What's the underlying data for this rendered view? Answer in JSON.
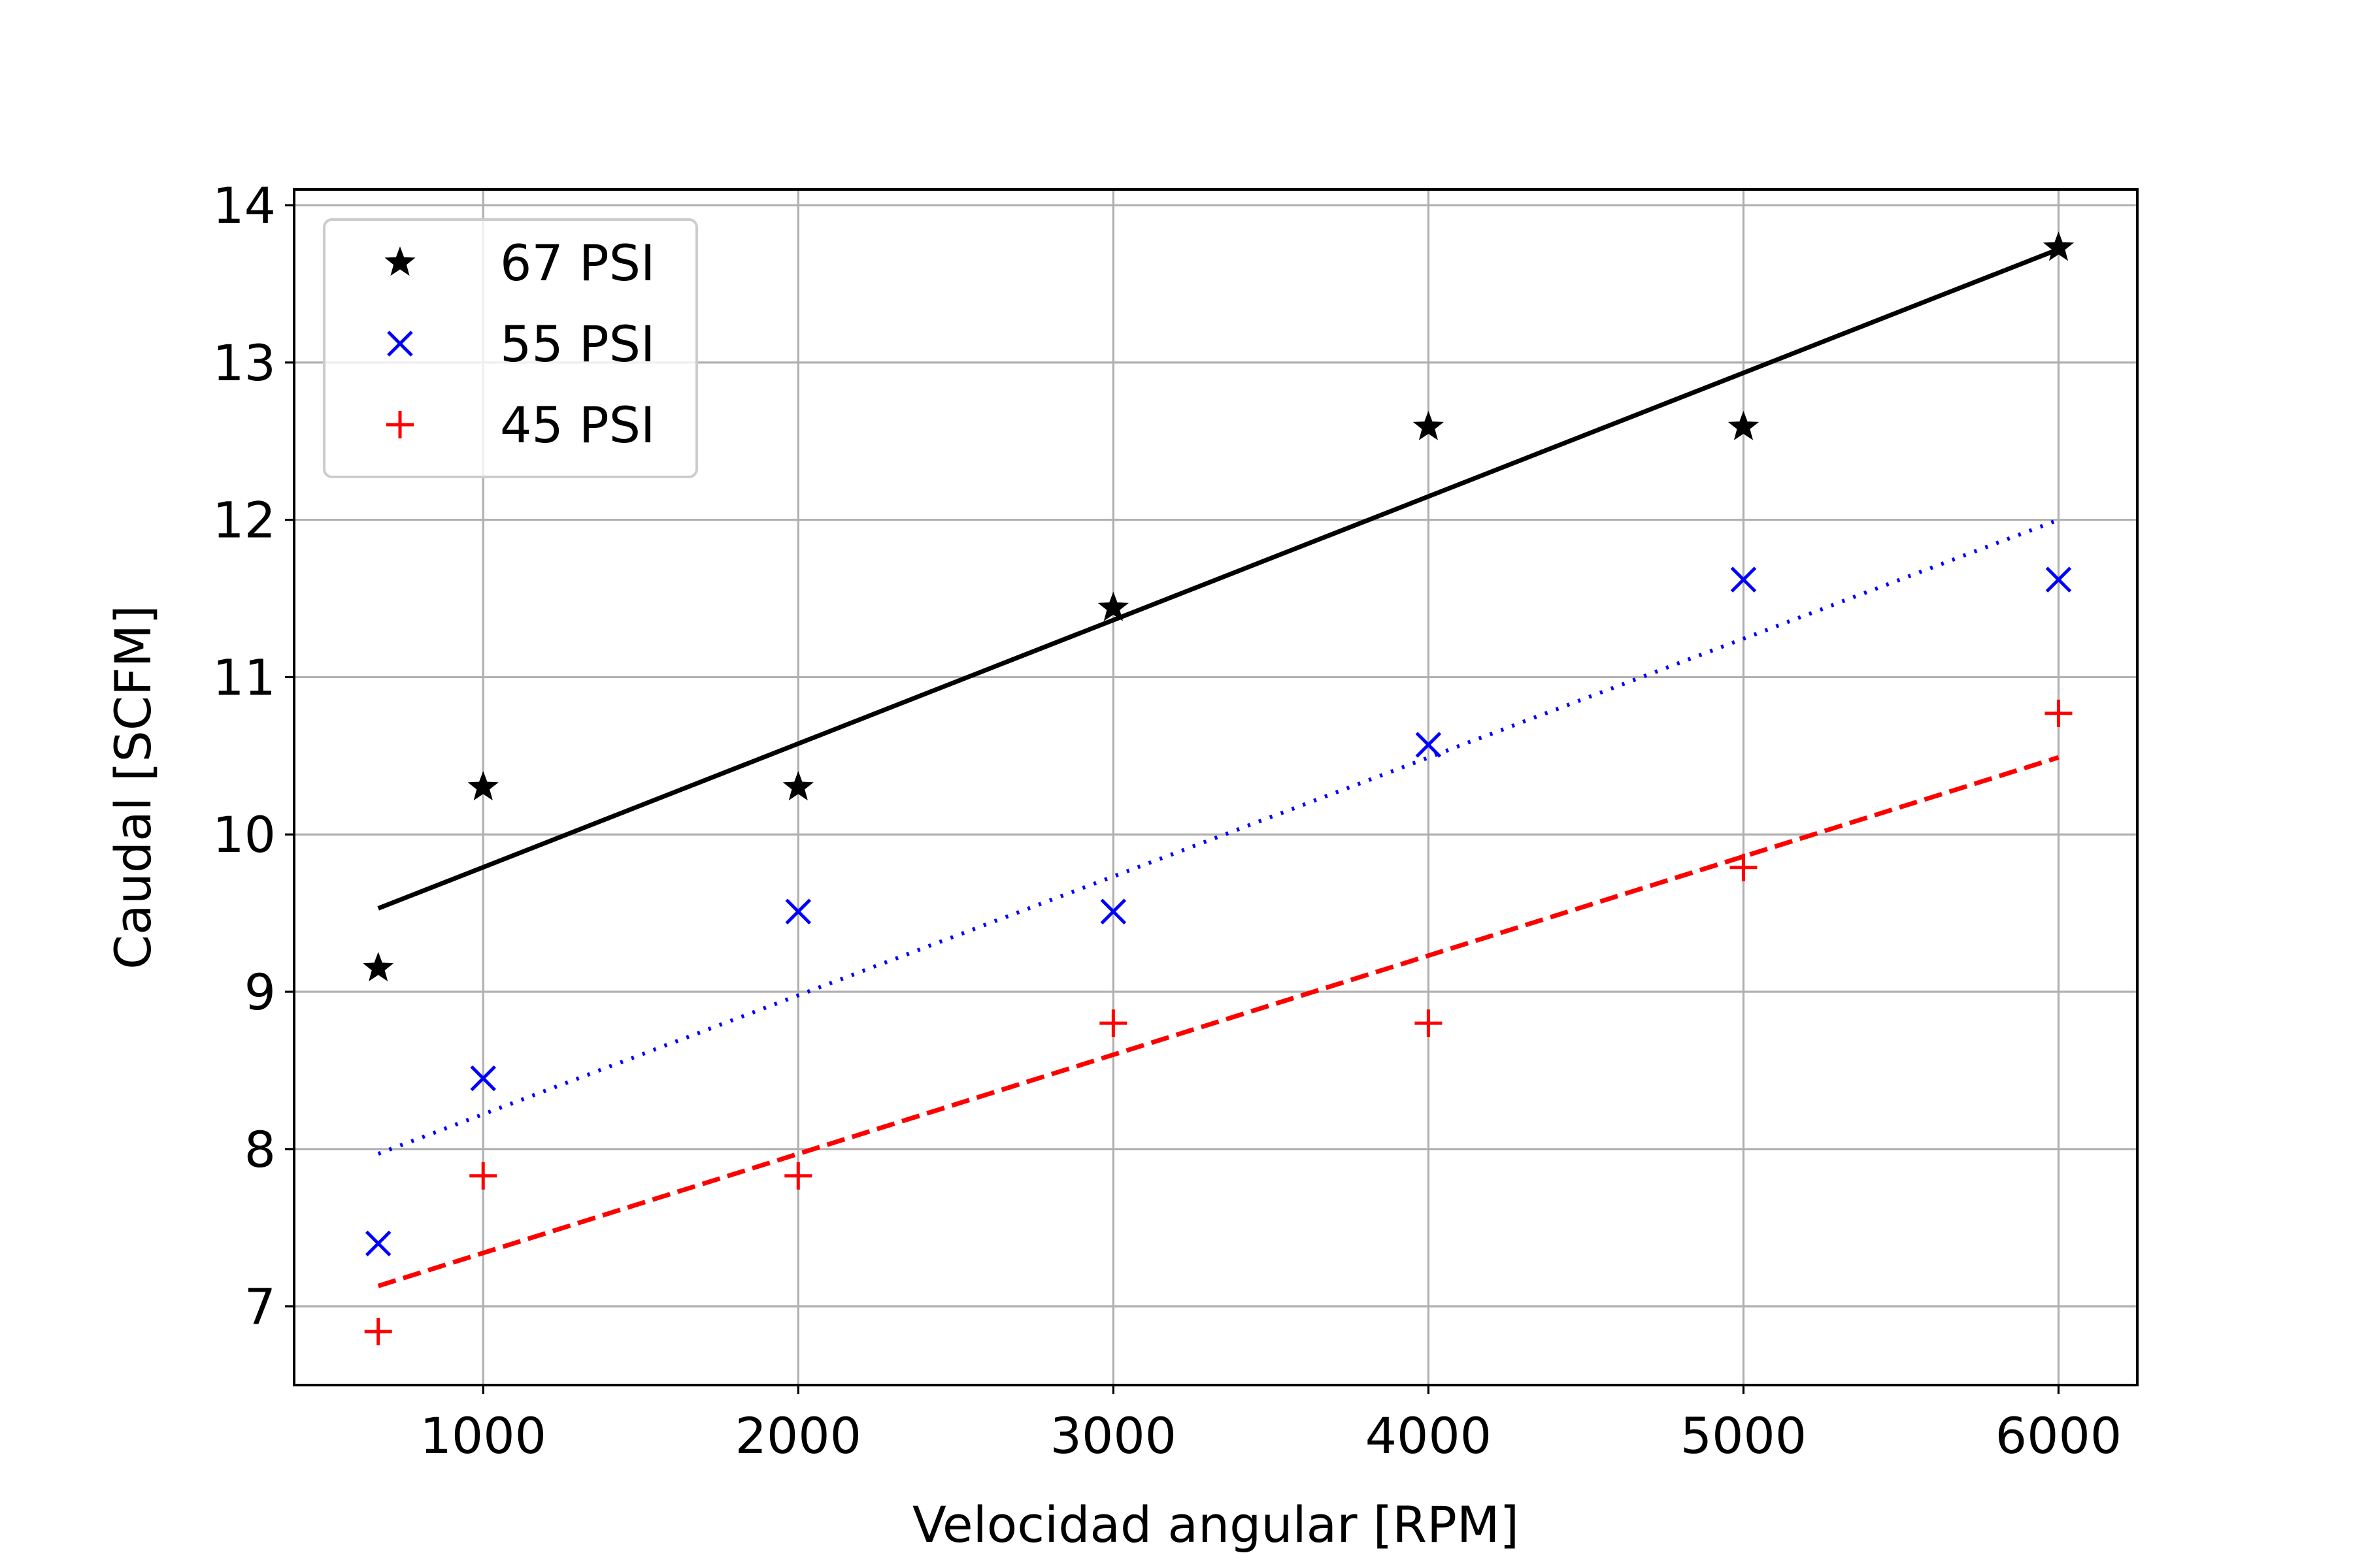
{
  "chart_data": {
    "type": "scatter",
    "xlabel": "Velocidad angular [RPM]",
    "ylabel": "Caudal [SCFM]",
    "xlim": [
      400,
      6250
    ],
    "ylim": [
      6.5,
      14.1
    ],
    "xticks": [
      1000,
      2000,
      3000,
      4000,
      5000,
      6000
    ],
    "yticks": [
      7,
      8,
      9,
      10,
      11,
      12,
      13,
      14
    ],
    "grid": true,
    "legend_position": "top-left",
    "series": [
      {
        "name": "67 PSI",
        "color": "#000000",
        "marker": "star",
        "points": [
          [
            667,
            9.15
          ],
          [
            1000,
            10.3
          ],
          [
            2000,
            10.3
          ],
          [
            3000,
            11.44
          ],
          [
            4000,
            12.59
          ],
          [
            5000,
            12.59
          ],
          [
            6000,
            13.73
          ]
        ],
        "fit": {
          "style": "solid",
          "x": [
            667,
            6000
          ],
          "y": [
            9.53,
            13.72
          ]
        }
      },
      {
        "name": "55 PSI",
        "color": "#0000ff",
        "marker": "x",
        "points": [
          [
            667,
            7.4
          ],
          [
            1000,
            8.45
          ],
          [
            2000,
            9.51
          ],
          [
            3000,
            9.51
          ],
          [
            4000,
            10.57
          ],
          [
            5000,
            11.62
          ],
          [
            6000,
            11.62
          ]
        ],
        "fit": {
          "style": "dotted",
          "x": [
            667,
            6000
          ],
          "y": [
            7.97,
            12.0
          ]
        }
      },
      {
        "name": "45 PSI",
        "color": "#ff0000",
        "marker": "plus",
        "points": [
          [
            667,
            6.84
          ],
          [
            1000,
            7.83
          ],
          [
            2000,
            7.83
          ],
          [
            3000,
            8.8
          ],
          [
            4000,
            8.8
          ],
          [
            5000,
            9.79
          ],
          [
            6000,
            10.77
          ]
        ],
        "fit": {
          "style": "dashed",
          "x": [
            667,
            6000
          ],
          "y": [
            7.13,
            10.49
          ]
        }
      }
    ]
  }
}
